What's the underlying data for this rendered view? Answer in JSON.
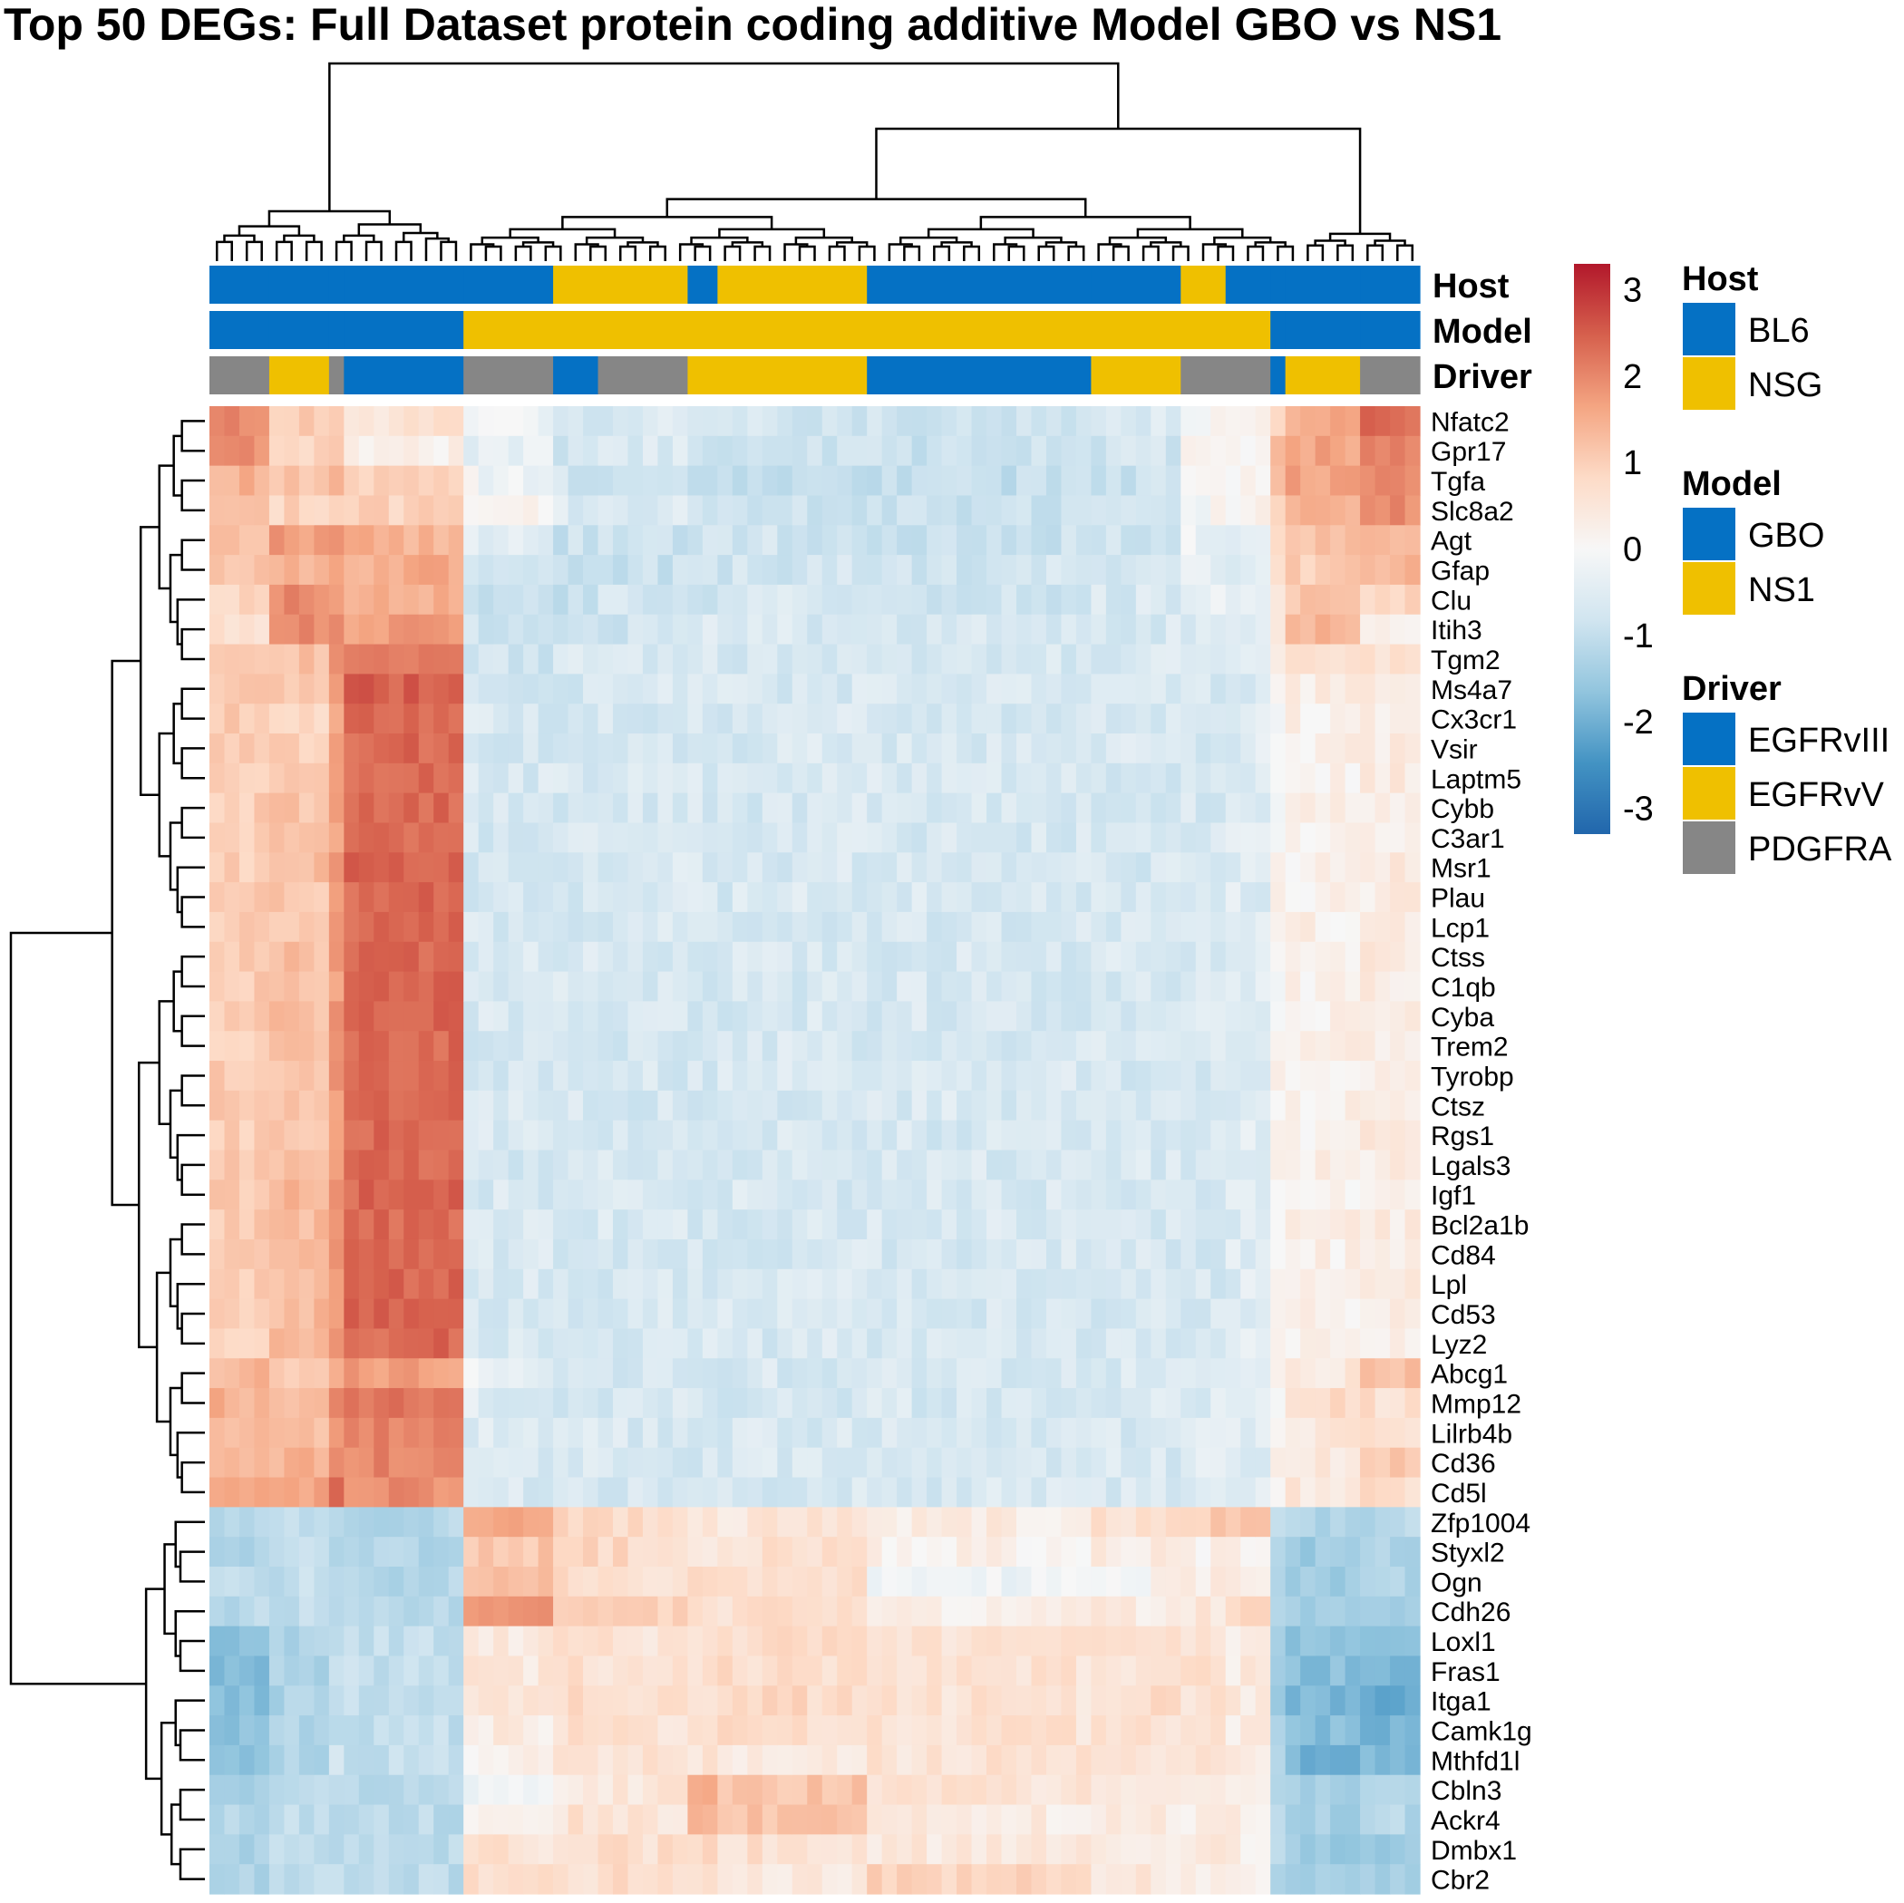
{
  "chart_data": {
    "type": "heatmap",
    "title": "Top 50 DEGs: Full Dataset protein coding additive Model GBO vs NS1",
    "rows": [
      "Nfatc2",
      "Gpr17",
      "Tgfa",
      "Slc8a2",
      "Agt",
      "Gfap",
      "Clu",
      "Itih3",
      "Tgm2",
      "Ms4a7",
      "Cx3cr1",
      "Vsir",
      "Laptm5",
      "Cybb",
      "C3ar1",
      "Msr1",
      "Plau",
      "Lcp1",
      "Ctss",
      "C1qb",
      "Cyba",
      "Trem2",
      "Tyrobp",
      "Ctsz",
      "Rgs1",
      "Lgals3",
      "Igf1",
      "Bcl2a1b",
      "Cd84",
      "Lpl",
      "Cd53",
      "Lyz2",
      "Abcg1",
      "Mmp12",
      "Lilrb4b",
      "Cd36",
      "Cd5l",
      "Zfp1004",
      "Styxl2",
      "Ogn",
      "Cdh26",
      "Loxl1",
      "Fras1",
      "Itga1",
      "Camk1g",
      "Mthfd1l",
      "Cbln3",
      "Ackr4",
      "Dmbx1",
      "Cbr2"
    ],
    "column_groups": [
      {
        "size": 4,
        "host": "BL6",
        "model": "GBO",
        "driver": "PDGFRA",
        "up": [
          1.9,
          1.8,
          1.3,
          1.2,
          1.2,
          1.1,
          0.8,
          0.5,
          0.9,
          0.9,
          0.9,
          0.9,
          0.9,
          0.9,
          0.9,
          0.9,
          0.9,
          0.9,
          0.9,
          0.9,
          0.9,
          0.9,
          0.9,
          0.9,
          0.9,
          0.9,
          0.9,
          0.9,
          0.9,
          0.9,
          0.9,
          0.9,
          1.2,
          1.3,
          1.2,
          1.3,
          1.4
        ],
        "down": [
          -1.0,
          -1.0,
          -0.9,
          -0.9,
          -1.6,
          -1.6,
          -1.7,
          -1.5,
          -1.7,
          -1.2,
          -1.0,
          -1.1,
          -1.1
        ]
      },
      {
        "size": 4,
        "host": "BL6",
        "model": "GBO",
        "driver": "EGFRvV",
        "up": [
          0.9,
          0.7,
          1.0,
          0.8,
          1.6,
          1.2,
          1.9,
          1.8,
          1.1,
          1.0,
          0.8,
          0.9,
          1.0,
          1.0,
          1.1,
          1.1,
          1.0,
          1.0,
          1.1,
          1.1,
          1.1,
          1.1,
          1.1,
          1.1,
          1.1,
          1.1,
          1.2,
          1.2,
          1.2,
          1.2,
          1.2,
          1.2,
          1.0,
          1.1,
          1.0,
          1.3,
          1.5
        ],
        "down": [
          -0.7,
          -0.8,
          -0.8,
          -0.8,
          -1.1,
          -1.1,
          -1.1,
          -1.0,
          -1.1,
          -0.9,
          -0.8,
          -0.8,
          -0.8
        ]
      },
      {
        "size": 1,
        "host": "BL6",
        "model": "GBO",
        "driver": "PDGFRA",
        "up": [
          1.1,
          1.0,
          1.2,
          1.0,
          1.8,
          1.6,
          1.8,
          1.9,
          1.7,
          1.7,
          1.6,
          1.6,
          1.6,
          1.6,
          1.6,
          1.6,
          1.6,
          1.6,
          1.6,
          1.6,
          1.6,
          1.6,
          1.6,
          1.6,
          1.6,
          1.6,
          1.6,
          1.6,
          1.6,
          1.6,
          1.6,
          1.6,
          1.5,
          1.8,
          1.6,
          1.8,
          2.4
        ],
        "down": [
          -1.0,
          -0.9,
          -0.9,
          -0.9,
          -0.7,
          -0.7,
          -0.7,
          -0.7,
          -0.7,
          -0.9,
          -0.9,
          -0.9,
          -0.9
        ]
      },
      {
        "size": 8,
        "host": "BL6",
        "model": "GBO",
        "driver": "EGFRvIII",
        "up": [
          0.5,
          0.2,
          0.8,
          0.8,
          1.3,
          1.4,
          1.4,
          1.6,
          1.9,
          2.4,
          2.3,
          2.3,
          2.3,
          2.3,
          2.3,
          2.3,
          2.3,
          2.3,
          2.3,
          2.3,
          2.3,
          2.3,
          2.3,
          2.3,
          2.3,
          2.3,
          2.3,
          2.3,
          2.3,
          2.3,
          2.3,
          2.3,
          1.6,
          2.1,
          1.9,
          1.9,
          1.8
        ],
        "down": [
          -1.0,
          -1.0,
          -1.0,
          -0.9,
          -0.8,
          -0.8,
          -0.8,
          -0.8,
          -0.8,
          -0.9,
          -0.9,
          -0.9,
          -0.9
        ]
      },
      {
        "size": 6,
        "host": "BL6",
        "model": "NS1",
        "driver": "PDGFRA",
        "up": [
          -0.2,
          -0.3,
          -0.1,
          0.1,
          -0.3,
          -0.7,
          -0.7,
          -0.6,
          -0.6,
          -0.5,
          -0.5,
          -0.5,
          -0.5,
          -0.5,
          -0.5,
          -0.5,
          -0.5,
          -0.5,
          -0.5,
          -0.5,
          -0.5,
          -0.5,
          -0.5,
          -0.5,
          -0.5,
          -0.5,
          -0.5,
          -0.5,
          -0.5,
          -0.5,
          -0.5,
          -0.5,
          -0.2,
          -0.4,
          -0.4,
          -0.5,
          -0.5
        ],
        "down": [
          1.5,
          1.0,
          1.0,
          1.6,
          0.4,
          0.4,
          0.4,
          0.3,
          0.2,
          -0.2,
          0.3,
          0.5,
          0.6
        ]
      },
      {
        "size": 3,
        "host": "NSG",
        "model": "NS1",
        "driver": "EGFRvIII",
        "up": [
          -0.6,
          -0.6,
          -0.6,
          -0.4,
          -0.7,
          -0.8,
          -0.8,
          -0.6,
          -0.5,
          -0.5,
          -0.5,
          -0.5,
          -0.5,
          -0.5,
          -0.5,
          -0.5,
          -0.5,
          -0.5,
          -0.5,
          -0.5,
          -0.5,
          -0.5,
          -0.5,
          -0.5,
          -0.5,
          -0.5,
          -0.5,
          -0.5,
          -0.5,
          -0.5,
          -0.5,
          -0.5,
          -0.5,
          -0.5,
          -0.5,
          -0.5,
          -0.5
        ],
        "down": [
          0.8,
          0.8,
          0.6,
          0.9,
          0.6,
          0.6,
          0.6,
          0.6,
          0.6,
          0.4,
          0.5,
          0.5,
          0.5
        ]
      },
      {
        "size": 6,
        "host": "NSG",
        "model": "NS1",
        "driver": "PDGFRA",
        "up": [
          -0.5,
          -0.5,
          -0.6,
          -0.4,
          -0.7,
          -0.7,
          -0.6,
          -0.6,
          -0.5,
          -0.5,
          -0.5,
          -0.5,
          -0.5,
          -0.5,
          -0.5,
          -0.5,
          -0.5,
          -0.5,
          -0.5,
          -0.5,
          -0.5,
          -0.5,
          -0.5,
          -0.5,
          -0.5,
          -0.5,
          -0.5,
          -0.5,
          -0.5,
          -0.5,
          -0.5,
          -0.5,
          -0.5,
          -0.5,
          -0.5,
          -0.5,
          -0.5
        ],
        "down": [
          0.7,
          0.7,
          0.6,
          0.8,
          0.5,
          0.5,
          0.5,
          0.5,
          0.5,
          0.4,
          0.5,
          0.6,
          0.6
        ]
      },
      {
        "size": 2,
        "host": "BL6",
        "model": "NS1",
        "driver": "EGFRvV",
        "up": [
          -0.6,
          -0.7,
          -0.8,
          -0.6,
          -0.6,
          -0.6,
          -0.6,
          -0.5,
          -0.5,
          -0.5,
          -0.5,
          -0.5,
          -0.5,
          -0.5,
          -0.5,
          -0.5,
          -0.5,
          -0.5,
          -0.5,
          -0.5,
          -0.5,
          -0.5,
          -0.5,
          -0.5,
          -0.5,
          -0.5,
          -0.5,
          -0.5,
          -0.5,
          -0.5,
          -0.5,
          -0.5,
          -0.5,
          -0.5,
          -0.5,
          -0.5,
          -0.5
        ],
        "down": [
          0.5,
          0.3,
          0.7,
          0.7,
          0.5,
          0.5,
          0.5,
          0.5,
          0.5,
          1.3,
          1.1,
          0.7,
          0.5
        ]
      },
      {
        "size": 10,
        "host": "NSG",
        "model": "NS1",
        "driver": "EGFRvV",
        "up": [
          -0.6,
          -0.7,
          -0.8,
          -0.7,
          -0.6,
          -0.6,
          -0.5,
          -0.5,
          -0.5,
          -0.5,
          -0.5,
          -0.5,
          -0.5,
          -0.5,
          -0.5,
          -0.5,
          -0.5,
          -0.5,
          -0.5,
          -0.5,
          -0.5,
          -0.5,
          -0.5,
          -0.5,
          -0.5,
          -0.5,
          -0.5,
          -0.5,
          -0.5,
          -0.5,
          -0.5,
          -0.5,
          -0.5,
          -0.5,
          -0.5,
          -0.5,
          -0.5
        ],
        "down": [
          0.4,
          0.6,
          0.6,
          0.6,
          0.6,
          0.6,
          0.7,
          0.6,
          0.4,
          1.0,
          1.0,
          0.6,
          0.4
        ]
      },
      {
        "size": 15,
        "host": "BL6",
        "model": "NS1",
        "driver": "EGFRvIII",
        "up": [
          -0.6,
          -0.7,
          -0.8,
          -0.7,
          -0.7,
          -0.6,
          -0.6,
          -0.5,
          -0.5,
          -0.5,
          -0.5,
          -0.5,
          -0.5,
          -0.5,
          -0.5,
          -0.5,
          -0.5,
          -0.5,
          -0.5,
          -0.5,
          -0.5,
          -0.5,
          -0.5,
          -0.5,
          -0.5,
          -0.5,
          -0.5,
          -0.5,
          -0.5,
          -0.5,
          -0.5,
          -0.5,
          -0.5,
          -0.5,
          -0.5,
          -0.5,
          -0.5
        ],
        "down": [
          0.3,
          0.2,
          -0.2,
          0.2,
          0.5,
          0.5,
          0.5,
          0.5,
          0.5,
          0.5,
          0.3,
          0.4,
          0.8
        ]
      },
      {
        "size": 6,
        "host": "BL6",
        "model": "NS1",
        "driver": "EGFRvV",
        "up": [
          -0.5,
          -0.6,
          -0.7,
          -0.6,
          -0.6,
          -0.6,
          -0.5,
          -0.5,
          -0.5,
          -0.5,
          -0.5,
          -0.5,
          -0.5,
          -0.5,
          -0.5,
          -0.5,
          -0.5,
          -0.5,
          -0.5,
          -0.5,
          -0.5,
          -0.5,
          -0.5,
          -0.5,
          -0.5,
          -0.5,
          -0.5,
          -0.5,
          -0.5,
          -0.5,
          -0.5,
          -0.5,
          -0.5,
          -0.5,
          -0.5,
          -0.5,
          -0.5
        ],
        "down": [
          0.5,
          0.3,
          0.1,
          0.3,
          0.5,
          0.5,
          0.6,
          0.5,
          0.5,
          0.5,
          0.3,
          0.4,
          0.4
        ]
      },
      {
        "size": 3,
        "host": "NSG",
        "model": "NS1",
        "driver": "PDGFRA",
        "up": [
          0.1,
          0.1,
          -0.1,
          0.0,
          -0.2,
          -0.3,
          -0.3,
          -0.4,
          -0.5,
          -0.5,
          -0.5,
          -0.5,
          -0.5,
          -0.5,
          -0.5,
          -0.5,
          -0.5,
          -0.5,
          -0.5,
          -0.5,
          -0.5,
          -0.5,
          -0.5,
          -0.5,
          -0.5,
          -0.5,
          -0.5,
          -0.5,
          -0.5,
          -0.5,
          -0.5,
          -0.5,
          -0.2,
          -0.4,
          -0.4,
          -0.4,
          -0.4
        ],
        "down": [
          0.9,
          0.2,
          0.3,
          0.4,
          0.5,
          0.5,
          0.5,
          0.5,
          0.5,
          0.3,
          0.3,
          0.3,
          0.3
        ]
      },
      {
        "size": 3,
        "host": "BL6",
        "model": "NS1",
        "driver": "PDGFRA",
        "up": [
          0.2,
          0.2,
          0.1,
          0.1,
          -0.2,
          -0.3,
          -0.4,
          -0.4,
          -0.4,
          -0.4,
          -0.4,
          -0.4,
          -0.4,
          -0.4,
          -0.4,
          -0.4,
          -0.4,
          -0.4,
          -0.4,
          -0.4,
          -0.4,
          -0.4,
          -0.4,
          -0.4,
          -0.4,
          -0.4,
          -0.4,
          -0.4,
          -0.4,
          -0.4,
          -0.4,
          -0.4,
          -0.2,
          -0.4,
          -0.4,
          -0.4,
          -0.4
        ],
        "down": [
          1.1,
          0.2,
          0.4,
          0.6,
          0.3,
          0.3,
          0.3,
          0.3,
          0.3,
          0.2,
          0.2,
          0.2,
          0.2
        ]
      },
      {
        "size": 1,
        "host": "BL6",
        "model": "GBO",
        "driver": "EGFRvIII",
        "up": [
          0.8,
          1.0,
          1.1,
          0.8,
          0.5,
          0.4,
          0.6,
          0.4,
          0.2,
          0.1,
          0.1,
          0.1,
          0.1,
          0.1,
          0.1,
          0.1,
          0.1,
          0.1,
          0.1,
          0.1,
          0.1,
          0.1,
          0.1,
          0.1,
          0.1,
          0.1,
          0.1,
          0.1,
          0.1,
          0.1,
          0.1,
          0.1,
          0.1,
          0.1,
          0.1,
          0.1,
          0.1
        ],
        "down": [
          -1.0,
          -1.1,
          -1.1,
          -1.1,
          -1.2,
          -1.2,
          -1.2,
          -1.2,
          -1.2,
          -1.0,
          -1.0,
          -1.0,
          -1.0
        ]
      },
      {
        "size": 5,
        "host": "BL6",
        "model": "GBO",
        "driver": "EGFRvV",
        "up": [
          1.4,
          1.5,
          1.5,
          1.4,
          1.1,
          0.9,
          1.0,
          1.2,
          0.6,
          0.3,
          0.2,
          0.2,
          0.2,
          0.2,
          0.2,
          0.2,
          0.2,
          0.2,
          0.2,
          0.2,
          0.2,
          0.2,
          0.2,
          0.2,
          0.2,
          0.2,
          0.2,
          0.2,
          0.2,
          0.2,
          0.2,
          0.2,
          0.4,
          0.7,
          0.4,
          0.4,
          0.4
        ],
        "down": [
          -1.1,
          -1.3,
          -1.3,
          -1.3,
          -1.6,
          -1.6,
          -1.8,
          -1.6,
          -1.8,
          -1.2,
          -1.2,
          -1.3,
          -1.3
        ]
      },
      {
        "size": 4,
        "host": "BL6",
        "model": "GBO",
        "driver": "PDGFRA",
        "up": [
          2.2,
          2.0,
          1.9,
          1.8,
          1.1,
          1.2,
          0.7,
          0.2,
          0.5,
          0.4,
          0.3,
          0.3,
          0.3,
          0.3,
          0.3,
          0.3,
          0.3,
          0.3,
          0.3,
          0.3,
          0.3,
          0.3,
          0.3,
          0.3,
          0.3,
          0.3,
          0.3,
          0.3,
          0.3,
          0.3,
          0.3,
          0.3,
          1.1,
          0.6,
          0.5,
          0.9,
          0.6
        ],
        "down": [
          -1.0,
          -1.1,
          -1.1,
          -1.1,
          -1.5,
          -1.7,
          -2.0,
          -1.8,
          -1.8,
          -1.1,
          -1.0,
          -1.3,
          -1.3
        ]
      }
    ]
  },
  "annotations": {
    "host_label": "Host",
    "model_label": "Model",
    "driver_label": "Driver"
  },
  "colorbar": {
    "ticks": [
      "3",
      "2",
      "1",
      "0",
      "-1",
      "-2",
      "-3"
    ],
    "colors": [
      "#2166ac",
      "#4393c3",
      "#92c5de",
      "#d1e5f0",
      "#f7f7f7",
      "#fddbc7",
      "#f4a582",
      "#d6604d",
      "#b2182b"
    ]
  },
  "legend": {
    "host": {
      "title": "Host",
      "items": [
        {
          "label": "BL6",
          "color": "#0571c4"
        },
        {
          "label": "NSG",
          "color": "#efc000"
        }
      ]
    },
    "model": {
      "title": "Model",
      "items": [
        {
          "label": "GBO",
          "color": "#0571c4"
        },
        {
          "label": "NS1",
          "color": "#efc000"
        }
      ]
    },
    "driver": {
      "title": "Driver",
      "items": [
        {
          "label": "EGFRvIII",
          "color": "#0571c4"
        },
        {
          "label": "EGFRvV",
          "color": "#efc000"
        },
        {
          "label": "PDGFRA",
          "color": "#868686"
        }
      ]
    }
  }
}
